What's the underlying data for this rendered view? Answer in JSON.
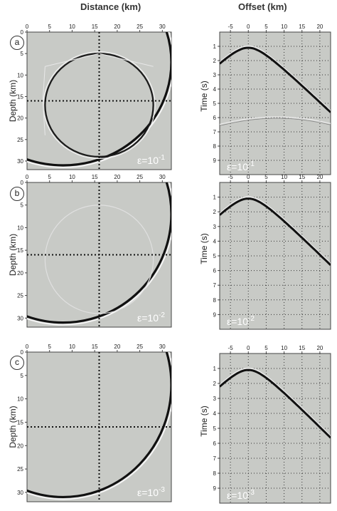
{
  "figure": {
    "left_header": "Distance (km)",
    "right_header": "Offset (km)",
    "panel_labels": [
      "a",
      "b",
      "c"
    ]
  },
  "left_axes": {
    "xlabel": "",
    "ylabel": "Depth (km)",
    "xticks": [
      "0",
      "5",
      "10",
      "15",
      "20",
      "25",
      "30"
    ],
    "yticks": [
      "0",
      "5",
      "10",
      "15",
      "20",
      "25",
      "30"
    ]
  },
  "right_axes": {
    "xlabel": "",
    "ylabel": "Time (s)",
    "xticks": [
      "-5",
      "0",
      "5",
      "10",
      "15",
      "20"
    ],
    "yticks": [
      "1",
      "2",
      "3",
      "4",
      "5",
      "6",
      "7",
      "8",
      "9"
    ]
  },
  "epsilon_labels": {
    "left": [
      "ε=10",
      "ε=10",
      "ε=10"
    ],
    "right": [
      "ε=10",
      "ε=10",
      "ε=10"
    ],
    "exponents": [
      "-1",
      "-2",
      "-3"
    ]
  },
  "chart_data": [
    {
      "type": "wavefield-snapshot",
      "panel": "a",
      "xlim": [
        0,
        32
      ],
      "ylim": [
        0,
        32
      ],
      "crosshair": {
        "x": 16,
        "y": 16
      },
      "outer_front": {
        "cx": 8,
        "cy": 7,
        "r": 24
      },
      "inner_front": {
        "cx": 16,
        "cy": 17,
        "r": 12
      },
      "epsilon": "10^-1"
    },
    {
      "type": "wavefield-snapshot",
      "panel": "b",
      "xlim": [
        0,
        32
      ],
      "ylim": [
        0,
        32
      ],
      "crosshair": {
        "x": 16,
        "y": 16
      },
      "outer_front": {
        "cx": 8,
        "cy": 7,
        "r": 24
      },
      "inner_front": {
        "cx": 16,
        "cy": 17,
        "r": 12
      },
      "epsilon": "10^-2"
    },
    {
      "type": "wavefield-snapshot",
      "panel": "c",
      "xlim": [
        0,
        32
      ],
      "ylim": [
        0,
        32
      ],
      "crosshair": {
        "x": 16,
        "y": 16
      },
      "outer_front": {
        "cx": 8,
        "cy": 7,
        "r": 24
      },
      "inner_front": null,
      "epsilon": "10^-3"
    },
    {
      "type": "seismogram",
      "panel": "a",
      "xlim": [
        -8,
        23
      ],
      "ylim": [
        0,
        10
      ],
      "direct_apex": {
        "x": 0,
        "t": 1.1
      },
      "direct_slope": 0.24,
      "reflection_apex": {
        "x": 8,
        "t": 5.95
      },
      "reflection_slope": 0.16,
      "epsilon": "10^-1"
    },
    {
      "type": "seismogram",
      "panel": "b",
      "xlim": [
        -8,
        23
      ],
      "ylim": [
        0,
        10
      ],
      "direct_apex": {
        "x": 0,
        "t": 1.1
      },
      "direct_slope": 0.24,
      "reflection_apex": null,
      "epsilon": "10^-2"
    },
    {
      "type": "seismogram",
      "panel": "c",
      "xlim": [
        -8,
        23
      ],
      "ylim": [
        0,
        10
      ],
      "direct_apex": {
        "x": 0,
        "t": 1.1
      },
      "direct_slope": 0.24,
      "reflection_apex": null,
      "epsilon": "10^-3"
    }
  ]
}
